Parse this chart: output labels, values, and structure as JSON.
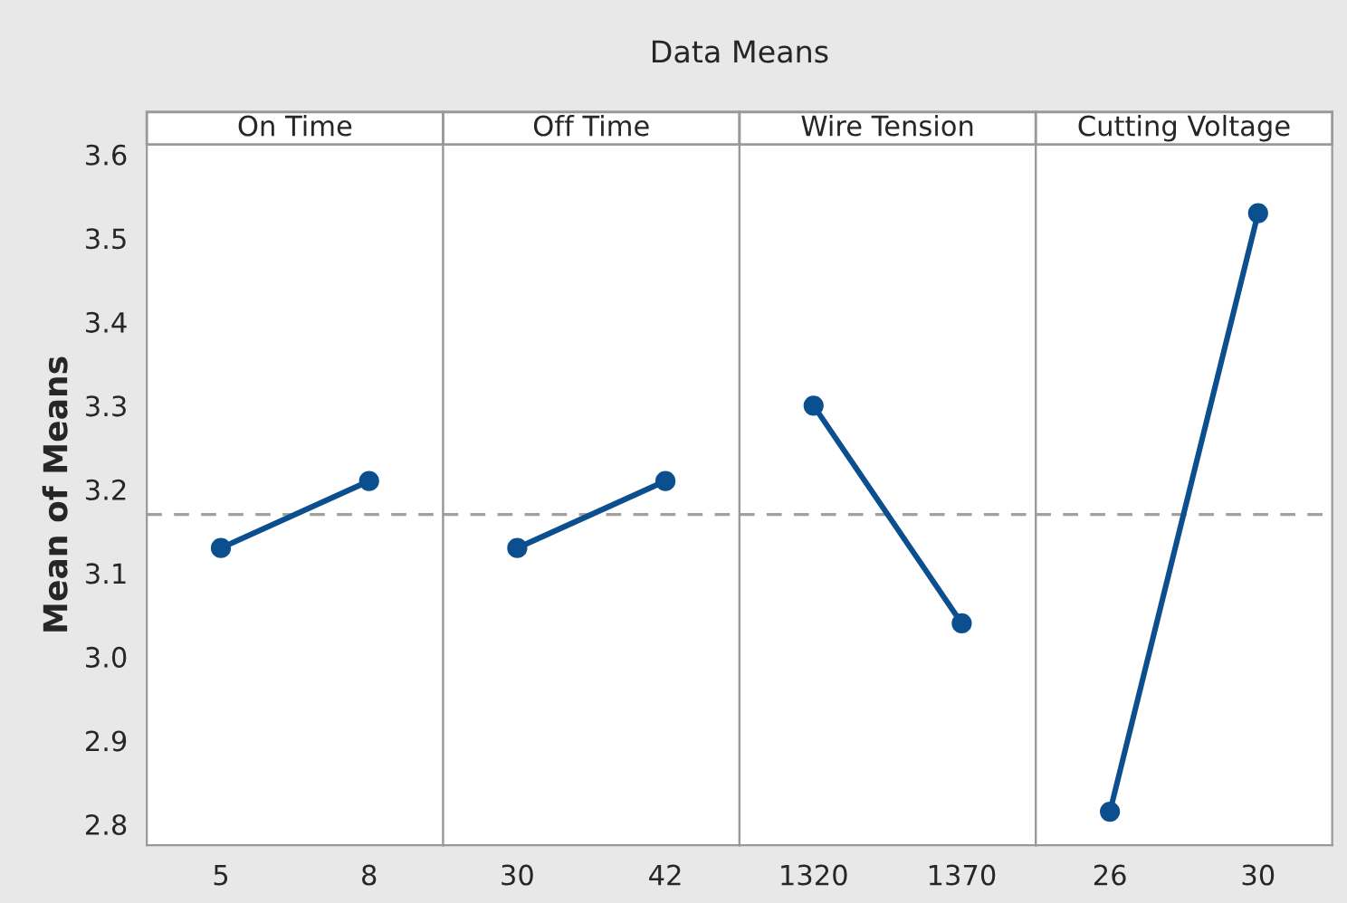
{
  "chart_data": [
    {
      "type": "line",
      "title": "On Time",
      "ylabel": "Mean of Means",
      "annotations": [
        "Data Means"
      ],
      "categories": [
        "5",
        "8"
      ],
      "series": [
        {
          "color": "#0b4f8f",
          "values": [
            3.13,
            3.21
          ]
        }
      ],
      "ylim": [
        2.775,
        3.612
      ],
      "yticks": [
        2.8,
        2.9,
        {
          "value": 3.0,
          "label": "3.0"
        },
        3.1,
        3.2,
        3.3,
        3.4,
        3.5,
        3.6
      ],
      "ref_lines": [
        {
          "axis": "y",
          "value": 3.17,
          "color": "#a0a0a0",
          "line_style": "dashed"
        }
      ],
      "marker": "circle",
      "grid": false,
      "legend": false
    },
    {
      "type": "line",
      "title": "Off Time",
      "categories": [
        "30",
        "42"
      ],
      "series": [
        {
          "color": "#0b4f8f",
          "values": [
            3.13,
            3.21
          ]
        }
      ],
      "ylim": [
        2.775,
        3.612
      ],
      "tick_labels": "x",
      "ref_lines": [
        {
          "axis": "y",
          "value": 3.17,
          "color": "#a0a0a0",
          "line_style": "dashed"
        }
      ],
      "marker": "circle",
      "grid": false,
      "legend": false
    },
    {
      "type": "line",
      "title": "Wire Tension",
      "categories": [
        "1320",
        "1370"
      ],
      "series": [
        {
          "color": "#0b4f8f",
          "values": [
            3.3,
            3.04
          ]
        }
      ],
      "ylim": [
        2.775,
        3.612
      ],
      "tick_labels": "x",
      "ref_lines": [
        {
          "axis": "y",
          "value": 3.17,
          "color": "#a0a0a0",
          "line_style": "dashed"
        }
      ],
      "marker": "circle",
      "grid": false,
      "legend": false
    },
    {
      "type": "line",
      "title": "Cutting Voltage",
      "categories": [
        "26",
        "30"
      ],
      "series": [
        {
          "color": "#0b4f8f",
          "values": [
            2.815,
            3.53
          ]
        }
      ],
      "ylim": [
        2.775,
        3.612
      ],
      "tick_labels": "x",
      "ref_lines": [
        {
          "axis": "y",
          "value": 3.17,
          "color": "#a0a0a0",
          "line_style": "dashed"
        }
      ],
      "marker": "circle",
      "grid": false,
      "legend": false
    }
  ]
}
